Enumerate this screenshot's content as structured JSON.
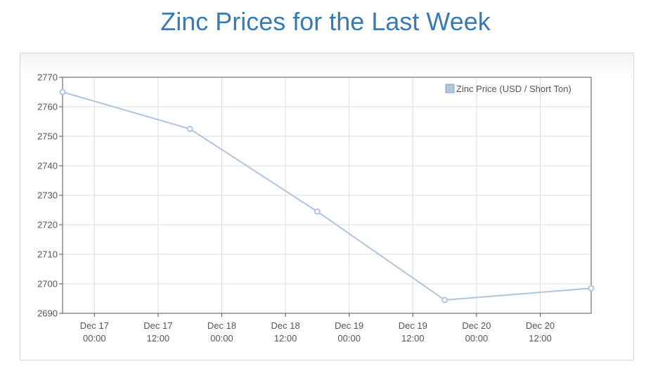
{
  "page": {
    "title": "Zinc Prices for the Last Week"
  },
  "chart_data": {
    "type": "line",
    "title": "Zinc Prices for the Last Week",
    "xlabel": "",
    "ylabel": "",
    "ylim": [
      2690,
      2770
    ],
    "yticks": [
      2770,
      2760,
      2750,
      2740,
      2730,
      2720,
      2710,
      2700,
      2690
    ],
    "xlim": [
      "Dec 16 18:00",
      "Dec 20 21:36"
    ],
    "xticks": [
      {
        "date": "Dec 17",
        "time": "00:00"
      },
      {
        "date": "Dec 17",
        "time": "12:00"
      },
      {
        "date": "Dec 18",
        "time": "00:00"
      },
      {
        "date": "Dec 18",
        "time": "12:00"
      },
      {
        "date": "Dec 19",
        "time": "00:00"
      },
      {
        "date": "Dec 19",
        "time": "12:00"
      },
      {
        "date": "Dec 20",
        "time": "00:00"
      },
      {
        "date": "Dec 20",
        "time": "12:00"
      }
    ],
    "grid": true,
    "legend_position": "top-right",
    "series": [
      {
        "name": "Zinc Price (USD / Short Ton)",
        "color": "#b0c4de",
        "points": [
          {
            "x": "Dec 16 18:00",
            "y": 2765
          },
          {
            "x": "Dec 17 18:00",
            "y": 2752.5
          },
          {
            "x": "Dec 18 18:00",
            "y": 2724.5
          },
          {
            "x": "Dec 19 18:00",
            "y": 2694.5
          },
          {
            "x": "Dec 20 21:36",
            "y": 2698.5
          }
        ]
      }
    ]
  }
}
